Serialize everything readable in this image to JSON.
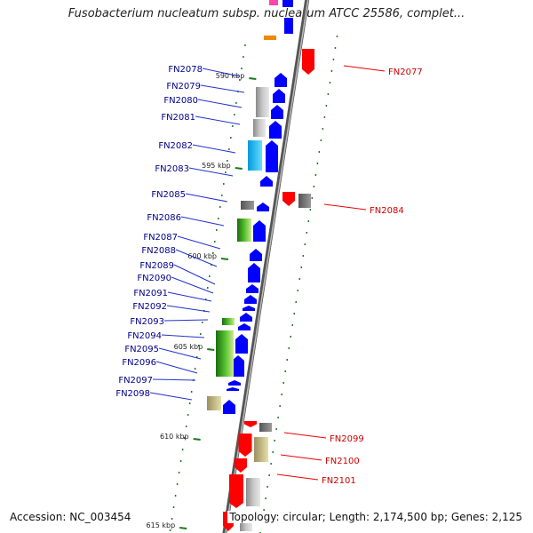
{
  "title": "Fusobacterium nucleatum subsp. nucleatum ATCC 25586, complet...",
  "accession": "Accession: NC_003454",
  "summary": "Topology: circular; Length: 2,174,500 bp; Genes: 2,125",
  "colors": {
    "forward": "#0000ff",
    "reverse": "#ff0000",
    "label_forward": "#00008b",
    "label_reverse": "#cc0000",
    "axis": "#777777",
    "tick": "#1a7a1a"
  },
  "scale": [
    {
      "label": "590 kbp",
      "pos": 590
    },
    {
      "label": "595 kbp",
      "pos": 595
    },
    {
      "label": "600 kbp",
      "pos": 600
    },
    {
      "label": "605 kbp",
      "pos": 605
    },
    {
      "label": "610 kbp",
      "pos": 610
    },
    {
      "label": "615 kbp",
      "pos": 615
    }
  ],
  "genes": [
    {
      "name": "FN2077",
      "strand": "reverse"
    },
    {
      "name": "FN2078",
      "strand": "forward"
    },
    {
      "name": "FN2079",
      "strand": "forward"
    },
    {
      "name": "FN2080",
      "strand": "forward"
    },
    {
      "name": "FN2081",
      "strand": "forward"
    },
    {
      "name": "FN2082",
      "strand": "forward"
    },
    {
      "name": "FN2083",
      "strand": "forward"
    },
    {
      "name": "FN2084",
      "strand": "reverse"
    },
    {
      "name": "FN2085",
      "strand": "forward"
    },
    {
      "name": "FN2086",
      "strand": "forward"
    },
    {
      "name": "FN2087",
      "strand": "forward"
    },
    {
      "name": "FN2088",
      "strand": "forward"
    },
    {
      "name": "FN2089",
      "strand": "forward"
    },
    {
      "name": "FN2090",
      "strand": "forward"
    },
    {
      "name": "FN2091",
      "strand": "forward"
    },
    {
      "name": "FN2092",
      "strand": "forward"
    },
    {
      "name": "FN2093",
      "strand": "forward"
    },
    {
      "name": "FN2094",
      "strand": "forward"
    },
    {
      "name": "FN2095",
      "strand": "forward"
    },
    {
      "name": "FN2096",
      "strand": "forward"
    },
    {
      "name": "FN2097",
      "strand": "forward"
    },
    {
      "name": "FN2098",
      "strand": "forward"
    },
    {
      "name": "FN2099",
      "strand": "reverse"
    },
    {
      "name": "FN2100",
      "strand": "reverse"
    },
    {
      "name": "FN2101",
      "strand": "reverse"
    }
  ]
}
